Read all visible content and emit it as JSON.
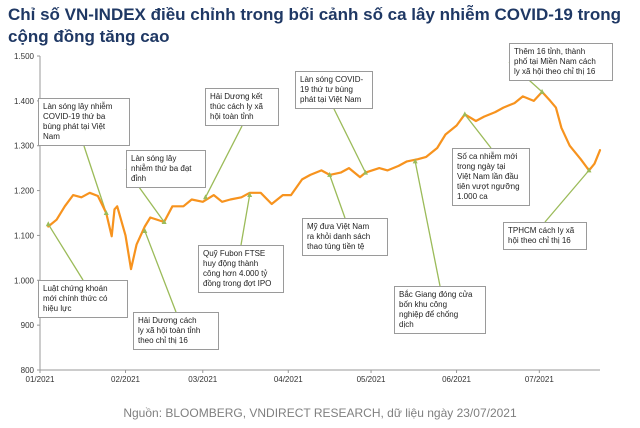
{
  "chart_data": {
    "type": "line",
    "title": "Chỉ số VN-INDEX điều chỉnh trong bối cảnh số ca lây nhiễm COVID-19 trong cộng đồng tăng cao",
    "xlabel": "",
    "ylabel": "",
    "ylim": [
      800,
      1500
    ],
    "yticks": [
      "1.500",
      "1.400",
      "1.300",
      "1.200",
      "1.100",
      "1.000",
      "900",
      "800"
    ],
    "ytick_values": [
      1500,
      1400,
      1300,
      1200,
      1100,
      1000,
      900,
      800
    ],
    "xticks": [
      "01/2021",
      "02/2021",
      "03/2021",
      "04/2021",
      "05/2021",
      "06/2021",
      "07/2021"
    ],
    "xlim_dates": [
      "2021-01-01",
      "2021-07-23"
    ],
    "grid": false,
    "line_color": "#f7931e",
    "series": [
      {
        "x": [
          "2021-01-04",
          "2021-01-07",
          "2021-01-10",
          "2021-01-13",
          "2021-01-16",
          "2021-01-19",
          "2021-01-22",
          "2021-01-25",
          "2021-01-27",
          "2021-01-28",
          "2021-01-29",
          "2021-02-01",
          "2021-02-03",
          "2021-02-05",
          "2021-02-08",
          "2021-02-10",
          "2021-02-15",
          "2021-02-18",
          "2021-02-22",
          "2021-02-25",
          "2021-03-01",
          "2021-03-05",
          "2021-03-08",
          "2021-03-11",
          "2021-03-15",
          "2021-03-18",
          "2021-03-22",
          "2021-03-26",
          "2021-03-30",
          "2021-04-02",
          "2021-04-06",
          "2021-04-09",
          "2021-04-13",
          "2021-04-16",
          "2021-04-20",
          "2021-04-23",
          "2021-04-27",
          "2021-04-29",
          "2021-05-04",
          "2021-05-07",
          "2021-05-11",
          "2021-05-14",
          "2021-05-18",
          "2021-05-21",
          "2021-05-25",
          "2021-05-28",
          "2021-06-01",
          "2021-06-04",
          "2021-06-08",
          "2021-06-11",
          "2021-06-15",
          "2021-06-18",
          "2021-06-22",
          "2021-06-25",
          "2021-06-29",
          "2021-07-02",
          "2021-07-05",
          "2021-07-07",
          "2021-07-09",
          "2021-07-12",
          "2021-07-14",
          "2021-07-16",
          "2021-07-19",
          "2021-07-21",
          "2021-07-23"
        ],
        "values": [
          1120,
          1135,
          1165,
          1190,
          1185,
          1195,
          1188,
          1150,
          1098,
          1158,
          1165,
          1100,
          1025,
          1080,
          1120,
          1140,
          1130,
          1165,
          1165,
          1180,
          1175,
          1190,
          1175,
          1180,
          1185,
          1195,
          1195,
          1170,
          1190,
          1190,
          1225,
          1235,
          1245,
          1235,
          1240,
          1250,
          1230,
          1240,
          1250,
          1245,
          1255,
          1265,
          1270,
          1275,
          1295,
          1325,
          1345,
          1370,
          1355,
          1365,
          1375,
          1385,
          1395,
          1410,
          1400,
          1420,
          1400,
          1385,
          1340,
          1300,
          1285,
          1270,
          1245,
          1260,
          1290
        ]
      }
    ]
  },
  "annotations": [
    {
      "id": "a1",
      "text": "Luật chứng khoán\nmới chính thức có\nhiệu lực"
    },
    {
      "id": "a2",
      "text": "Làn sóng lây nhiễm\nCOVID-19 thứ ba\nbùng phát tại Việt\nNam"
    },
    {
      "id": "a3",
      "text": "Hải Dương cách\nly xã hội toàn tỉnh\ntheo chỉ thị 16"
    },
    {
      "id": "a4",
      "text": "Làn sóng lây\nnhiễm thứ ba đạt\nđỉnh"
    },
    {
      "id": "a5",
      "text": "Hải Dương kết\nthúc cách ly xã\nhội toàn tỉnh"
    },
    {
      "id": "a6",
      "text": "Quỹ Fubon FTSE\nhuy động thành\ncông hơn 4.000 tỷ\nđồng trong đợt IPO"
    },
    {
      "id": "a7",
      "text": "Làn sóng COVID-\n19 thứ tư bùng\nphát tại Việt Nam"
    },
    {
      "id": "a8",
      "text": "Mỹ đưa Việt Nam\nra khỏi danh sách\nthao túng tiền tệ"
    },
    {
      "id": "a9",
      "text": "Bắc Giang đóng cửa\nbốn khu công\nnghiệp để chống\ndịch"
    },
    {
      "id": "a10",
      "text": "Số ca nhiễm mới\ntrong ngày tại\nViệt Nam lần đầu\ntiên vượt ngưỡng\n1.000 ca"
    },
    {
      "id": "a11",
      "text": "Thêm 16 tỉnh, thành\nphố tại Miền Nam cách\nly xã hội theo chỉ thị 16"
    },
    {
      "id": "a12",
      "text": "TPHCM cách ly xã\nhội theo chỉ thị 16"
    }
  ],
  "source": "Nguồn: BLOOMBERG, VNDIRECT RESEARCH, dữ liệu ngày 23/07/2021"
}
